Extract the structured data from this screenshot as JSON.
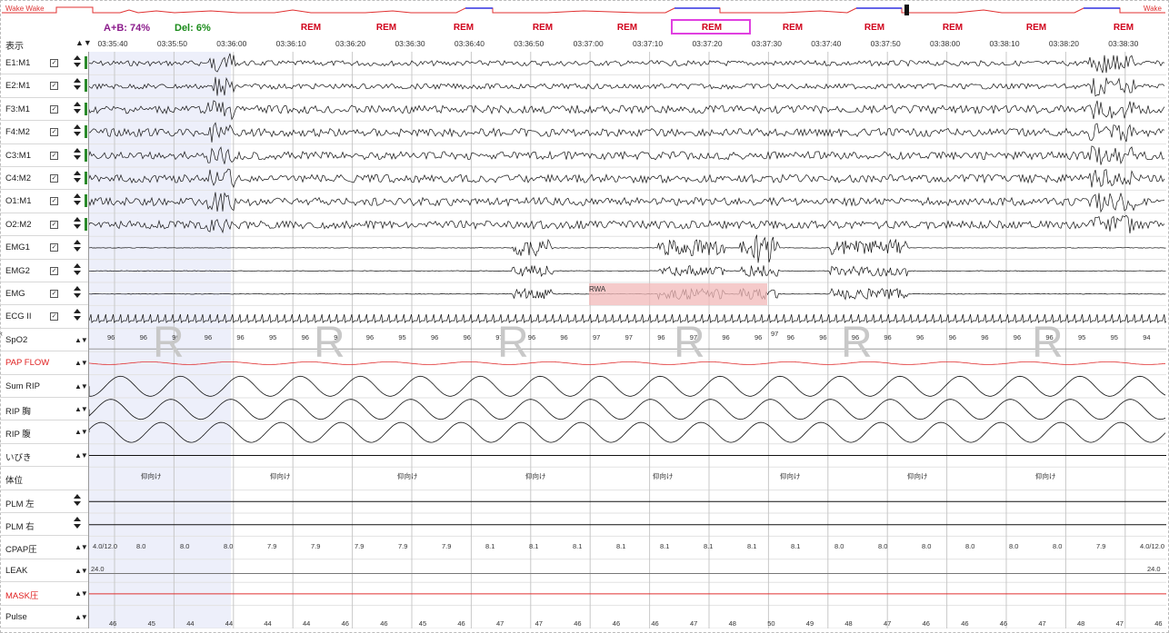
{
  "header": {
    "hypnogram_left_labels": "Wake  Wake",
    "hypnogram_right_labels": "Wake",
    "ab_stat": "A+B: 74%",
    "del_stat": "Del: 6%",
    "stage_labels": [
      "REM",
      "REM",
      "REM",
      "REM",
      "REM",
      "REM",
      "REM",
      "REM",
      "REM",
      "REM",
      "REM",
      "REM",
      "REM",
      "REM"
    ],
    "display_label": "表示",
    "display_arrows": "▲▼"
  },
  "time_labels": [
    "03:35:40",
    "03:35:50",
    "03:36:00",
    "03:36:10",
    "03:36:20",
    "03:36:30",
    "03:36:40",
    "03:36:50",
    "03:37:00",
    "03:37:10",
    "03:37:20",
    "03:37:30",
    "03:37:40",
    "03:37:50",
    "03:38:00",
    "03:38:10",
    "03:38:20",
    "03:38:30"
  ],
  "channels": [
    {
      "name": "E1:M1",
      "check": "☑",
      "ctl": "arrows",
      "red": false
    },
    {
      "name": "E2:M1",
      "check": "☑",
      "ctl": "arrows",
      "red": false
    },
    {
      "name": "F3:M1",
      "check": "☑",
      "ctl": "arrows",
      "red": false
    },
    {
      "name": "F4:M2",
      "check": "☑",
      "ctl": "arrows",
      "red": false
    },
    {
      "name": "C3:M1",
      "check": "☑",
      "ctl": "arrows",
      "red": false
    },
    {
      "name": "C4:M2",
      "check": "☑",
      "ctl": "arrows",
      "red": false
    },
    {
      "name": "O1:M1",
      "check": "☑",
      "ctl": "arrows",
      "red": false
    },
    {
      "name": "O2:M2",
      "check": "☑",
      "ctl": "arrows",
      "red": false
    },
    {
      "name": "EMG1",
      "check": "☑",
      "ctl": "arrows",
      "red": false
    },
    {
      "name": "EMG2",
      "check": "☑",
      "ctl": "arrows",
      "red": false
    },
    {
      "name": "EMG",
      "check": "☑",
      "ctl": "arrows",
      "red": false
    },
    {
      "name": "ECG II",
      "check": "☑",
      "ctl": "arrows",
      "red": false
    },
    {
      "name": "SpO2",
      "check": "",
      "ctl": "av",
      "red": false
    },
    {
      "name": "PAP FLOW",
      "check": "",
      "ctl": "av",
      "red": true
    },
    {
      "name": "Sum RIP",
      "check": "",
      "ctl": "av",
      "red": false
    },
    {
      "name": "RIP 胸",
      "check": "",
      "ctl": "av",
      "red": false
    },
    {
      "name": "RIP 腹",
      "check": "",
      "ctl": "av",
      "red": false
    },
    {
      "name": "いびき",
      "check": "",
      "ctl": "av",
      "red": false
    },
    {
      "name": "体位",
      "check": "",
      "ctl": "none",
      "red": false
    },
    {
      "name": "PLM 左",
      "check": "",
      "ctl": "arrows",
      "red": false
    },
    {
      "name": "PLM 右",
      "check": "",
      "ctl": "arrows",
      "red": false
    },
    {
      "name": "CPAP圧",
      "check": "",
      "ctl": "av",
      "red": false
    },
    {
      "name": "LEAK",
      "check": "",
      "ctl": "av",
      "red": false
    },
    {
      "name": "MASK圧",
      "check": "",
      "ctl": "av",
      "red": true
    },
    {
      "name": "Pulse",
      "check": "",
      "ctl": "av",
      "red": false
    }
  ],
  "av_glyph": "▲▼",
  "spo2_values": [
    "96",
    "96",
    "96",
    "96",
    "96",
    "95",
    "96",
    "96",
    "96",
    "95",
    "96",
    "96",
    "97",
    "96",
    "96",
    "97",
    "97",
    "96",
    "97",
    "96",
    "96",
    "96",
    "96",
    "96",
    "96",
    "96",
    "96",
    "96",
    "96",
    "96",
    "95",
    "95",
    "94"
  ],
  "spo2_last": "97",
  "posture_label": "仰向け",
  "cpap_values": [
    "4.0/12.0",
    "8.0",
    "8.0",
    "8.0",
    "7.9",
    "7.9",
    "7.9",
    "7.9",
    "7.9",
    "8.1",
    "8.1",
    "8.1",
    "8.1",
    "8.1",
    "8.1",
    "8.1",
    "8.1",
    "8.0",
    "8.0",
    "8.0",
    "8.0",
    "8.0",
    "8.0",
    "7.9",
    "4.0/12.0"
  ],
  "leak_left": "24.0",
  "leak_right": "24.0",
  "pulse_values": [
    "46",
    "45",
    "44",
    "44",
    "44",
    "44",
    "46",
    "46",
    "45",
    "46",
    "47",
    "47",
    "46",
    "46",
    "46",
    "47",
    "48",
    "50",
    "49",
    "48",
    "47",
    "46",
    "46",
    "46",
    "47",
    "48",
    "47",
    "46"
  ],
  "rwa_label": "RWA",
  "big_marker": "R",
  "scroll_left_glyph": "‹"
}
